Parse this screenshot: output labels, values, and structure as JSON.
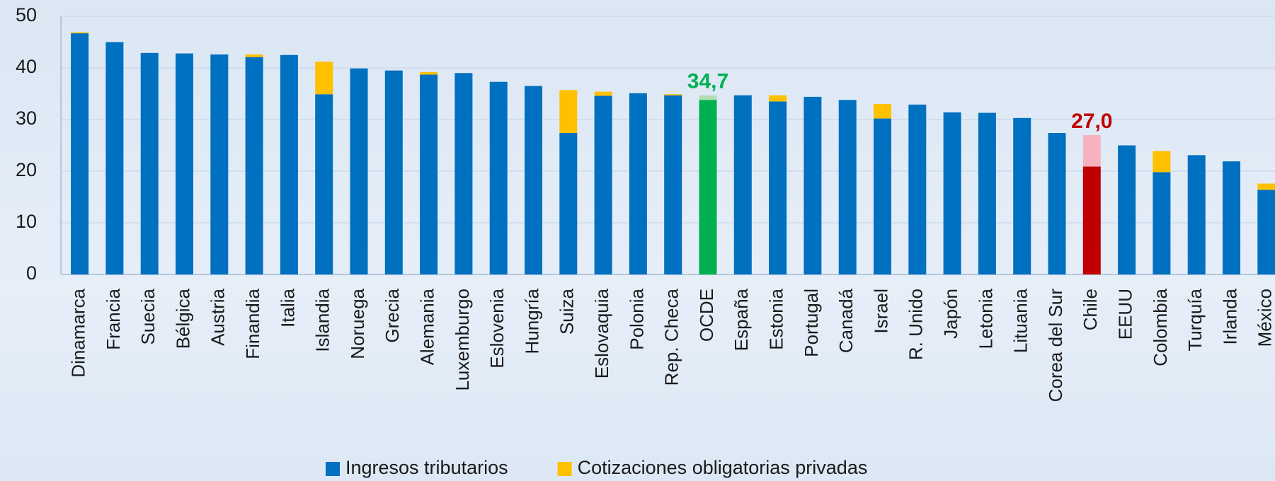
{
  "chart_data": {
    "type": "stacked-bar",
    "categories": [
      "Dinamarca",
      "Francia",
      "Suecia",
      "Bélgica",
      "Austria",
      "Finandia",
      "Italia",
      "Islandia",
      "Noruega",
      "Grecia",
      "Alemania",
      "Luxemburgo",
      "Eslovenia",
      "Hungría",
      "Suiza",
      "Eslovaquia",
      "Polonia",
      "Rep. Checa",
      "OCDE",
      "España",
      "Estonia",
      "Portugal",
      "Canadá",
      "Israel",
      "R. Unido",
      "Japón",
      "Letonia",
      "Lituania",
      "Corea del Sur",
      "Chile",
      "EEUU",
      "Colombia",
      "Turquía",
      "Irlanda",
      "México"
    ],
    "series": [
      {
        "name": "Ingresos tributarios",
        "color": "#0070c0",
        "values": [
          46.7,
          45.0,
          42.9,
          42.8,
          42.6,
          42.1,
          42.5,
          34.9,
          39.9,
          39.5,
          38.7,
          39.0,
          37.3,
          36.5,
          27.4,
          34.6,
          35.1,
          34.7,
          33.8,
          34.7,
          33.5,
          34.4,
          33.8,
          30.2,
          32.9,
          31.4,
          31.3,
          30.3,
          27.4,
          20.9,
          25.0,
          19.8,
          23.1,
          21.9,
          16.4
        ]
      },
      {
        "name": "Cotizaciones obligatorias privadas",
        "color": "#ffc000",
        "values": [
          0.2,
          0,
          0,
          0,
          0,
          0.5,
          0,
          6.3,
          0,
          0,
          0.5,
          0,
          0,
          0,
          8.3,
          0.8,
          0,
          0.2,
          0.9,
          0,
          1.2,
          0,
          0,
          2.8,
          0,
          0,
          0,
          0,
          0,
          6.1,
          0,
          4.1,
          0,
          0,
          1.2
        ]
      }
    ],
    "highlights": {
      "OCDE": [
        "#00b050",
        "#b4dcb4"
      ],
      "Chile": [
        "#c00000",
        "#f7b2c0"
      ]
    },
    "annotations": [
      {
        "category": "OCDE",
        "value": 34.7,
        "label": "34,7",
        "color": "#00b050"
      },
      {
        "category": "Chile",
        "value": 27.0,
        "label": "27,0",
        "color": "#c00000"
      }
    ],
    "ylim": [
      0,
      50
    ],
    "yticks": [
      0,
      10,
      20,
      30,
      40,
      50
    ],
    "grid": true,
    "legend": "bottom"
  }
}
